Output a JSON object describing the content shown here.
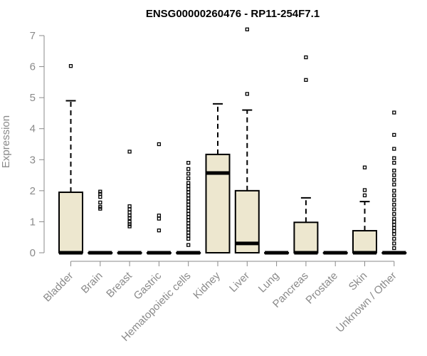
{
  "chart_data": {
    "type": "boxplot",
    "title": "ENSG00000260476 - RP11-254F7.1",
    "ylabel": "Expression",
    "xlabel": "",
    "ylim": [
      0,
      7
    ],
    "yticks": [
      0,
      1,
      2,
      3,
      4,
      5,
      6,
      7
    ],
    "colors": {
      "box_fill": "#ede7cf",
      "box_stroke": "#000000",
      "axis": "#8a8a8a"
    },
    "categories": [
      "Bladder",
      "Brain",
      "Breast",
      "Gastric",
      "Hematopoietic cells",
      "Kidney",
      "Liver",
      "Lung",
      "Pancreas",
      "Prostate",
      "Skin",
      "Unknown / Other"
    ],
    "boxes": [
      {
        "q1": 0,
        "median": 0,
        "q3": 1.95,
        "whisker_low": 0,
        "whisker_high": 4.9,
        "outliers": [
          6.02
        ]
      },
      {
        "q1": 0,
        "median": 0,
        "q3": 0,
        "whisker_low": 0,
        "whisker_high": 0,
        "outliers": [
          1.42,
          1.48,
          1.62,
          1.8,
          1.9,
          1.97
        ]
      },
      {
        "q1": 0,
        "median": 0,
        "q3": 0,
        "whisker_low": 0,
        "whisker_high": 0,
        "outliers": [
          0.85,
          0.92,
          1.0,
          1.12,
          1.2,
          1.3,
          1.4,
          1.5,
          3.26
        ]
      },
      {
        "q1": 0,
        "median": 0,
        "q3": 0,
        "whisker_low": 0,
        "whisker_high": 0,
        "outliers": [
          0.72,
          1.1,
          1.2,
          3.5
        ]
      },
      {
        "q1": 0,
        "median": 0,
        "q3": 0,
        "whisker_low": 0,
        "whisker_high": 0,
        "outliers": [
          0.25,
          0.45,
          0.55,
          0.65,
          0.75,
          0.85,
          0.95,
          1.05,
          1.15,
          1.25,
          1.35,
          1.45,
          1.55,
          1.65,
          1.75,
          1.85,
          1.95,
          2.05,
          2.15,
          2.25,
          2.4,
          2.55,
          2.7,
          2.9
        ]
      },
      {
        "q1": 0,
        "median": 2.57,
        "q3": 3.17,
        "whisker_low": 0,
        "whisker_high": 4.8,
        "outliers": []
      },
      {
        "q1": 0,
        "median": 0.3,
        "q3": 2.0,
        "whisker_low": 0,
        "whisker_high": 4.6,
        "outliers": [
          5.12,
          7.2
        ]
      },
      {
        "q1": 0,
        "median": 0,
        "q3": 0,
        "whisker_low": 0,
        "whisker_high": 0,
        "outliers": []
      },
      {
        "q1": 0,
        "median": 0,
        "q3": 0.98,
        "whisker_low": 0,
        "whisker_high": 1.77,
        "outliers": [
          5.57,
          6.3
        ]
      },
      {
        "q1": 0,
        "median": 0,
        "q3": 0,
        "whisker_low": 0,
        "whisker_high": 0,
        "outliers": []
      },
      {
        "q1": 0,
        "median": 0,
        "q3": 0.71,
        "whisker_low": 0,
        "whisker_high": 1.65,
        "outliers": [
          1.85,
          2.02,
          2.75
        ]
      },
      {
        "q1": 0,
        "median": 0,
        "q3": 0,
        "whisker_low": 0,
        "whisker_high": 0,
        "outliers": [
          0.15,
          0.3,
          0.45,
          0.6,
          0.7,
          0.8,
          0.9,
          1.0,
          1.1,
          1.25,
          1.4,
          1.55,
          1.7,
          1.85,
          2.0,
          2.2,
          2.35,
          2.5,
          2.65,
          2.9,
          3.05,
          3.35,
          3.8,
          4.52
        ]
      }
    ]
  }
}
